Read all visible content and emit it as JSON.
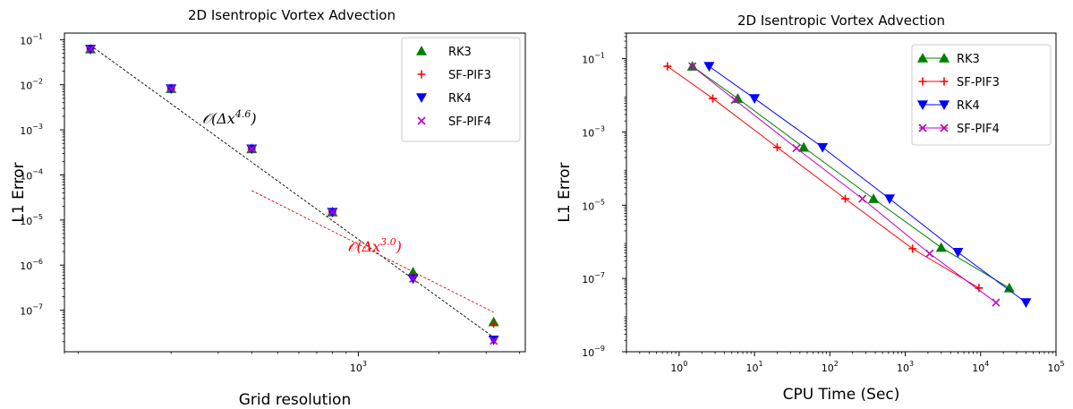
{
  "chart_data": [
    {
      "type": "scatter",
      "title": "2D Isentropic Vortex Advection",
      "xlabel": "Grid resolution",
      "ylabel": "L1 Error",
      "xscale": "log",
      "yscale": "log",
      "xlim": [
        80,
        4200
      ],
      "ylim": [
        1.2e-08,
        0.14
      ],
      "x_ticks": [
        {
          "value": 1000,
          "base": "10",
          "exp": "3"
        }
      ],
      "y_ticks": [
        {
          "value": 0.1,
          "base": "10",
          "exp": "−1"
        },
        {
          "value": 0.01,
          "base": "10",
          "exp": "−2"
        },
        {
          "value": 0.001,
          "base": "10",
          "exp": "−3"
        },
        {
          "value": 0.0001,
          "base": "10",
          "exp": "−4"
        },
        {
          "value": 1e-05,
          "base": "10",
          "exp": "−5"
        },
        {
          "value": 1e-06,
          "base": "10",
          "exp": "−6"
        },
        {
          "value": 1e-07,
          "base": "10",
          "exp": "−7"
        }
      ],
      "legend": "top-right",
      "series": [
        {
          "name": "RK3",
          "color": "#008000",
          "marker": "triangle-up",
          "x": [
            100,
            200,
            400,
            800,
            1600,
            3200
          ],
          "y": [
            0.062,
            0.0082,
            0.00038,
            1.5e-05,
            7e-07,
            5.5e-08
          ]
        },
        {
          "name": "SF-PIF3",
          "color": "#ff0000",
          "marker": "plus",
          "x": [
            100,
            200,
            400,
            800,
            1600,
            3200
          ],
          "y": [
            0.062,
            0.0082,
            0.00038,
            1.5e-05,
            6e-07,
            5e-08
          ]
        },
        {
          "name": "RK4",
          "color": "#0000ff",
          "marker": "triangle-down",
          "x": [
            100,
            200,
            400,
            800,
            1600,
            3200
          ],
          "y": [
            0.062,
            0.0082,
            0.00038,
            1.5e-05,
            5e-07,
            2.2e-08
          ]
        },
        {
          "name": "SF-PIF4",
          "color": "#bf00bf",
          "marker": "x",
          "x": [
            100,
            200,
            400,
            800,
            1600,
            3200
          ],
          "y": [
            0.062,
            0.0082,
            0.00038,
            1.5e-05,
            5e-07,
            2.1e-08
          ]
        }
      ],
      "reference_lines": [
        {
          "label": "𝒪(Δx",
          "exp": "4.6",
          "close": ")",
          "color": "#000000",
          "x": [
            100,
            3200
          ],
          "y": [
            0.075,
            2.5e-08
          ],
          "label_at": [
            330,
            0.0014
          ]
        },
        {
          "label": "𝒪(Δx",
          "exp": "3.0",
          "close": ")",
          "color": "#ff0000",
          "x": [
            400,
            3200
          ],
          "y": [
            4.5e-05,
            9e-08
          ],
          "label_at": [
            1150,
            2e-06
          ]
        }
      ]
    },
    {
      "type": "line",
      "title": "2D Isentropic Vortex Advection",
      "xlabel": "CPU Time (Sec)",
      "ylabel": "L1 Error",
      "xscale": "log",
      "yscale": "log",
      "xlim": [
        0.2,
        100000
      ],
      "ylim": [
        1e-09,
        0.5
      ],
      "x_ticks": [
        {
          "value": 1,
          "base": "10",
          "exp": "0"
        },
        {
          "value": 10,
          "base": "10",
          "exp": "1"
        },
        {
          "value": 100,
          "base": "10",
          "exp": "2"
        },
        {
          "value": 1000,
          "base": "10",
          "exp": "3"
        },
        {
          "value": 10000,
          "base": "10",
          "exp": "4"
        },
        {
          "value": 100000,
          "base": "10",
          "exp": "5"
        }
      ],
      "y_ticks": [
        {
          "value": 0.1,
          "base": "10",
          "exp": "−1"
        },
        {
          "value": 0.001,
          "base": "10",
          "exp": "−3"
        },
        {
          "value": 1e-05,
          "base": "10",
          "exp": "−5"
        },
        {
          "value": 1e-07,
          "base": "10",
          "exp": "−7"
        },
        {
          "value": 1e-09,
          "base": "10",
          "exp": "−9"
        }
      ],
      "legend": "top-right",
      "series": [
        {
          "name": "RK3",
          "color": "#008000",
          "marker": "triangle-up",
          "x": [
            1.5,
            6,
            45,
            380,
            3000,
            24000
          ],
          "y": [
            0.062,
            0.0082,
            0.00038,
            1.5e-05,
            7e-07,
            5.5e-08
          ]
        },
        {
          "name": "SF-PIF3",
          "color": "#ff0000",
          "marker": "plus",
          "x": [
            0.7,
            2.8,
            20,
            160,
            1250,
            9500
          ],
          "y": [
            0.062,
            0.0082,
            0.00038,
            1.5e-05,
            6.5e-07,
            5.5e-08
          ]
        },
        {
          "name": "RK4",
          "color": "#0000ff",
          "marker": "triangle-down",
          "x": [
            2.5,
            10,
            80,
            620,
            5000,
            40000
          ],
          "y": [
            0.062,
            0.0082,
            0.00038,
            1.5e-05,
            5.2e-07,
            2.2e-08
          ]
        },
        {
          "name": "SF-PIF4",
          "color": "#bf00bf",
          "marker": "x",
          "x": [
            1.5,
            5.5,
            36,
            270,
            2100,
            16000
          ],
          "y": [
            0.062,
            0.0075,
            0.00036,
            1.5e-05,
            4.8e-07,
            2.2e-08
          ]
        }
      ]
    }
  ]
}
